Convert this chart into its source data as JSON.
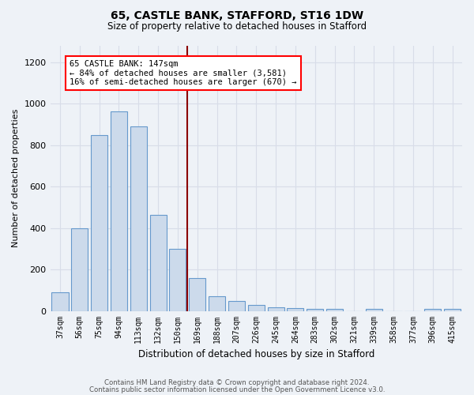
{
  "title1": "65, CASTLE BANK, STAFFORD, ST16 1DW",
  "title2": "Size of property relative to detached houses in Stafford",
  "xlabel": "Distribution of detached houses by size in Stafford",
  "ylabel": "Number of detached properties",
  "categories": [
    "37sqm",
    "56sqm",
    "75sqm",
    "94sqm",
    "113sqm",
    "132sqm",
    "150sqm",
    "169sqm",
    "188sqm",
    "207sqm",
    "226sqm",
    "245sqm",
    "264sqm",
    "283sqm",
    "302sqm",
    "321sqm",
    "339sqm",
    "358sqm",
    "377sqm",
    "396sqm",
    "415sqm"
  ],
  "values": [
    88,
    400,
    848,
    963,
    888,
    463,
    300,
    160,
    70,
    48,
    28,
    18,
    12,
    10,
    10,
    0,
    10,
    0,
    0,
    10,
    10
  ],
  "bar_color": "#ccdaeb",
  "bar_edge_color": "#6699cc",
  "property_line_x": 6.5,
  "property_label": "65 CASTLE BANK: 147sqm",
  "annotation_line1": "← 84% of detached houses are smaller (3,581)",
  "annotation_line2": "16% of semi-detached houses are larger (670) →",
  "annotation_box_color": "white",
  "annotation_box_edge_color": "red",
  "vline_color": "#8b0000",
  "ylim": [
    0,
    1280
  ],
  "yticks": [
    0,
    200,
    400,
    600,
    800,
    1000,
    1200
  ],
  "footnote1": "Contains HM Land Registry data © Crown copyright and database right 2024.",
  "footnote2": "Contains public sector information licensed under the Open Government Licence v3.0.",
  "bg_color": "#eef2f7",
  "grid_color": "#d8dde8"
}
